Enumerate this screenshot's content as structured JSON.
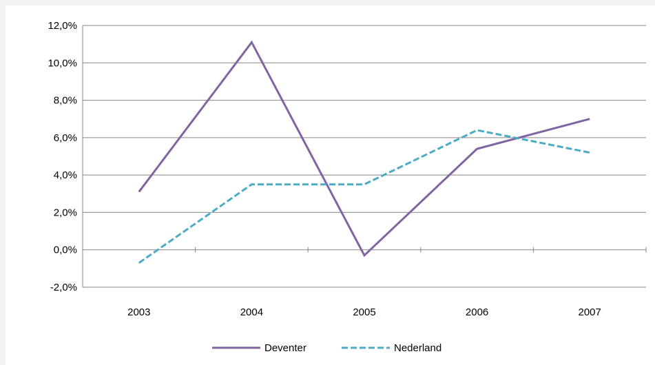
{
  "chart_data": {
    "type": "line",
    "title": "",
    "xlabel": "",
    "ylabel": "",
    "categories": [
      "2003",
      "2004",
      "2005",
      "2006",
      "2007"
    ],
    "ylim": [
      -2.0,
      12.0
    ],
    "yticks": [
      -2.0,
      0.0,
      2.0,
      4.0,
      6.0,
      8.0,
      10.0,
      12.0
    ],
    "ytick_labels": [
      "-2,0%",
      "0,0%",
      "2,0%",
      "4,0%",
      "6,0%",
      "8,0%",
      "10,0%",
      "12,0%"
    ],
    "grid": true,
    "legend_position": "bottom",
    "series": [
      {
        "name": "Deventer",
        "values": [
          3.1,
          11.1,
          -0.3,
          5.4,
          7.0
        ],
        "color": "#8064a2",
        "style": "solid"
      },
      {
        "name": "Nederland",
        "values": [
          -0.7,
          3.5,
          3.5,
          6.4,
          5.2
        ],
        "color": "#4bacc6",
        "style": "dashed"
      }
    ]
  }
}
